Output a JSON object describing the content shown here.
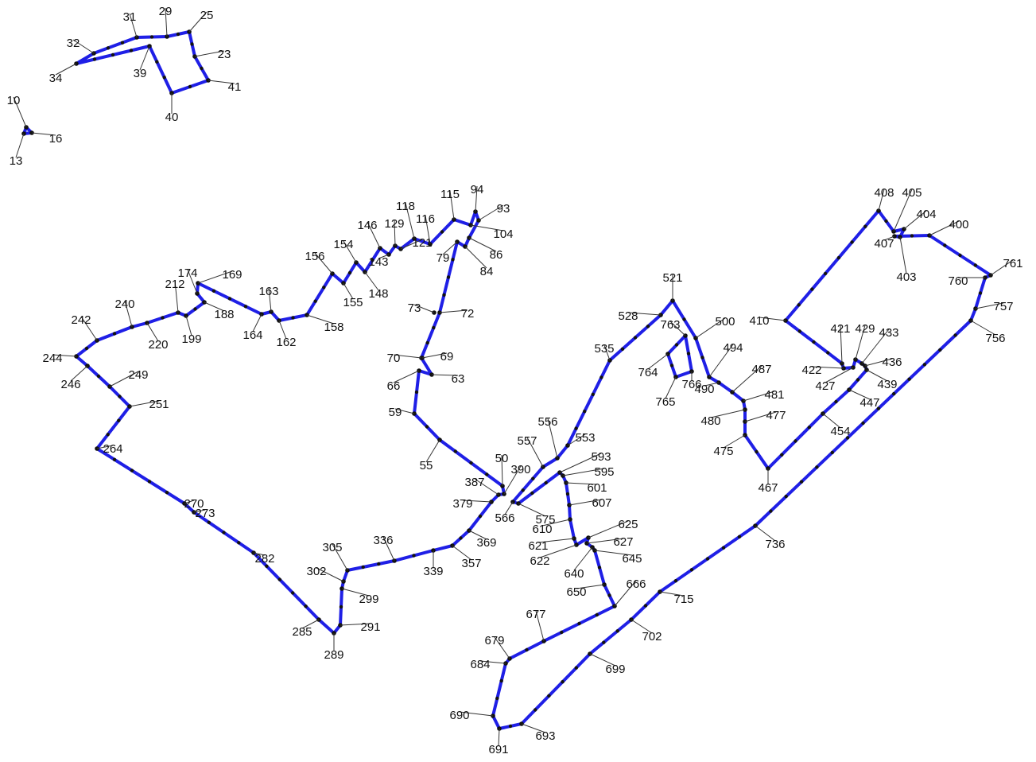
{
  "colors": {
    "boundary": "#1f1fe6",
    "vertex": "#111111",
    "background": "#ffffff"
  },
  "parcels": [
    {
      "id": "parcel-small-north",
      "vertices": [
        "31",
        "29",
        "25",
        "23",
        "41",
        "40",
        "39",
        "34",
        "32"
      ]
    },
    {
      "id": "parcel-triangle",
      "vertices": [
        "10",
        "16",
        "13"
      ]
    },
    {
      "id": "parcel-west",
      "vertices": [
        "50",
        "55",
        "59",
        "63",
        "66",
        "69",
        "70",
        "72",
        "73",
        "79",
        "84",
        "86",
        "93",
        "94",
        "104",
        "115",
        "116",
        "118",
        "121",
        "129",
        "143",
        "146",
        "148",
        "154",
        "155",
        "156",
        "158",
        "162",
        "163",
        "164",
        "169",
        "174",
        "188",
        "199",
        "212",
        "220",
        "240",
        "242",
        "244",
        "246",
        "249",
        "251",
        "264",
        "270",
        "273",
        "282",
        "285",
        "289",
        "291",
        "299",
        "302",
        "305",
        "336",
        "339",
        "357",
        "369",
        "379",
        "387",
        "390"
      ]
    },
    {
      "id": "parcel-central",
      "vertices": [
        "521",
        "500",
        "494",
        "490",
        "487",
        "481",
        "480",
        "477",
        "475",
        "467",
        "454",
        "447",
        "439",
        "436",
        "433",
        "429",
        "427",
        "422",
        "421",
        "410",
        "408",
        "405",
        "404",
        "403",
        "407",
        "400",
        "761",
        "760",
        "757",
        "756",
        "736",
        "715",
        "702",
        "699",
        "693",
        "691",
        "690",
        "684",
        "679",
        "677",
        "666",
        "650",
        "645",
        "640",
        "627",
        "625",
        "622",
        "621",
        "610",
        "607",
        "601",
        "595",
        "593",
        "575",
        "566",
        "557",
        "556",
        "553",
        "535",
        "528"
      ]
    },
    {
      "id": "parcel-inner-square",
      "vertices": [
        "763",
        "764",
        "765",
        "766"
      ]
    }
  ],
  "labels": [
    "31",
    "29",
    "25",
    "23",
    "41",
    "40",
    "39",
    "34",
    "32",
    "10",
    "16",
    "13",
    "94",
    "93",
    "104",
    "115",
    "118",
    "116",
    "86",
    "84",
    "79",
    "121",
    "129",
    "146",
    "143",
    "154",
    "156",
    "155",
    "148",
    "163",
    "158",
    "174",
    "169",
    "188",
    "164",
    "162",
    "212",
    "240",
    "242",
    "220",
    "199",
    "244",
    "246",
    "249",
    "251",
    "264",
    "270",
    "273",
    "282",
    "285",
    "289",
    "291",
    "299",
    "302",
    "305",
    "336",
    "339",
    "357",
    "369",
    "379",
    "387",
    "390",
    "50",
    "55",
    "59",
    "63",
    "66",
    "69",
    "70",
    "73",
    "72",
    "521",
    "528",
    "763",
    "500",
    "535",
    "764",
    "766",
    "765",
    "494",
    "490",
    "487",
    "481",
    "480",
    "477",
    "475",
    "467",
    "408",
    "405",
    "404",
    "407",
    "403",
    "400",
    "761",
    "760",
    "757",
    "756",
    "410",
    "421",
    "429",
    "433",
    "422",
    "427",
    "436",
    "439",
    "447",
    "454",
    "736",
    "715",
    "702",
    "699",
    "693",
    "691",
    "690",
    "684",
    "679",
    "677",
    "666",
    "650",
    "645",
    "640",
    "627",
    "625",
    "622",
    "621",
    "610",
    "607",
    "601",
    "595",
    "593",
    "575",
    "566",
    "557",
    "556",
    "553"
  ]
}
